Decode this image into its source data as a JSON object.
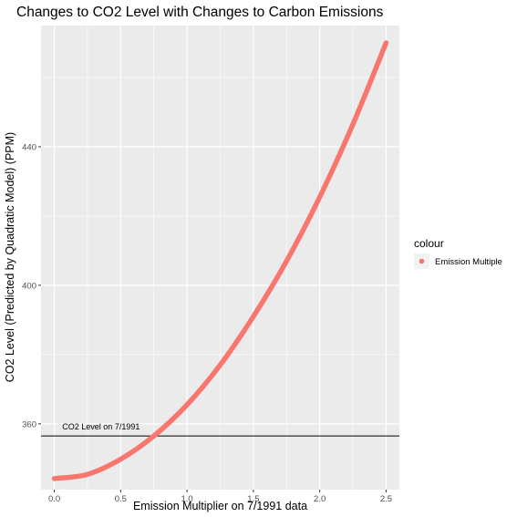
{
  "chart_data": {
    "type": "line",
    "title": "Changes to CO2 Level with Changes to Carbon Emissions",
    "xlabel": "Emission Multiplier on 7/1991 data",
    "ylabel": "CO2 Level (Predicted by Quadratic Model) (PPM)",
    "xlim": [
      -0.1,
      2.6
    ],
    "ylim": [
      341,
      475
    ],
    "x_ticks": [
      0.0,
      0.5,
      1.0,
      1.5,
      2.0,
      2.5
    ],
    "x_tick_labels": [
      "0.0",
      "0.5",
      "1.0",
      "1.5",
      "2.0",
      "2.5"
    ],
    "y_ticks": [
      360,
      400,
      440
    ],
    "y_tick_labels": [
      "360",
      "400",
      "440"
    ],
    "grid": true,
    "legend": {
      "title": "colour",
      "position": "right",
      "entries": [
        {
          "label": "Emission Multiple",
          "color": "#F8766D"
        }
      ]
    },
    "series": [
      {
        "name": "Emission Multiple",
        "color": "#F8766D",
        "x": [
          0.0,
          0.25,
          0.5,
          0.75,
          1.0,
          1.25,
          1.5,
          1.75,
          2.0,
          2.25,
          2.5
        ],
        "y": [
          344.2,
          345.4,
          349.8,
          356.5,
          365.5,
          377.0,
          391.0,
          407.0,
          425.5,
          446.5,
          470.0
        ]
      }
    ],
    "hline": {
      "y": 356.5,
      "color": "#000000",
      "label": "CO2 Level on 7/1991"
    }
  }
}
